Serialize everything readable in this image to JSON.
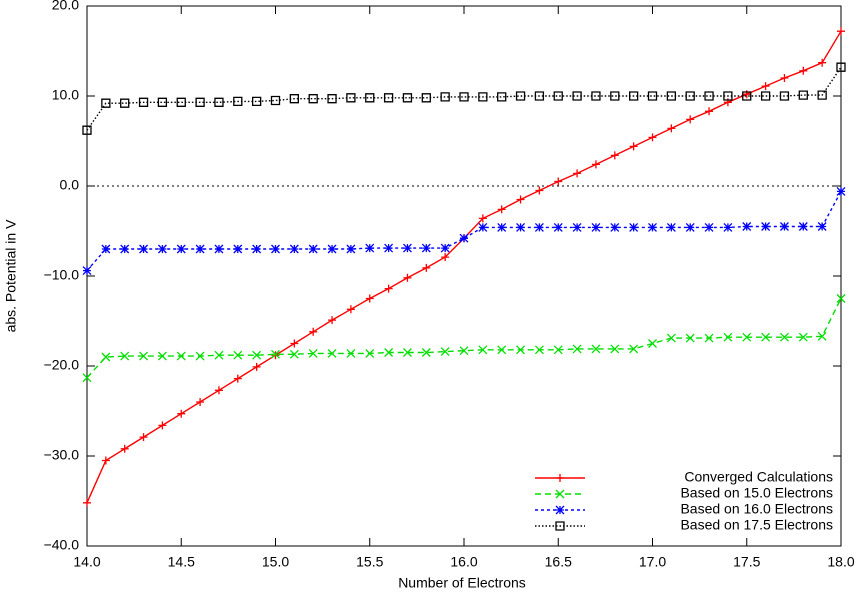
{
  "chart_data": {
    "type": "line",
    "xlabel": "Number of Electrons",
    "ylabel": "abs. Potential in V",
    "x": [
      14.0,
      14.1,
      14.2,
      14.3,
      14.4,
      14.5,
      14.6,
      14.7,
      14.8,
      14.9,
      15.0,
      15.1,
      15.2,
      15.3,
      15.4,
      15.5,
      15.6,
      15.7,
      15.8,
      15.9,
      16.0,
      16.1,
      16.2,
      16.3,
      16.4,
      16.5,
      16.6,
      16.7,
      16.8,
      16.9,
      17.0,
      17.1,
      17.2,
      17.3,
      17.4,
      17.5,
      17.6,
      17.7,
      17.8,
      17.9,
      18.0
    ],
    "series": [
      {
        "name": "Converged Calculations",
        "color": "#ff0000",
        "marker": "plus",
        "linestyle": "solid",
        "values": [
          -35.2,
          -30.5,
          -29.2,
          -27.9,
          -26.6,
          -25.3,
          -24.0,
          -22.7,
          -21.4,
          -20.1,
          -18.8,
          -17.5,
          -16.2,
          -14.9,
          -13.7,
          -12.5,
          -11.4,
          -10.2,
          -9.1,
          -7.9,
          -5.8,
          -3.6,
          -2.6,
          -1.5,
          -0.5,
          0.5,
          1.4,
          2.4,
          3.4,
          4.4,
          5.4,
          6.4,
          7.4,
          8.3,
          9.3,
          10.2,
          11.1,
          12.0,
          12.8,
          13.7,
          17.2
        ]
      },
      {
        "name": "Based on 15.0 Electrons",
        "color": "#00e000",
        "marker": "cross",
        "linestyle": "dashed",
        "values": [
          -21.3,
          -19.0,
          -18.9,
          -18.9,
          -18.9,
          -18.9,
          -18.9,
          -18.8,
          -18.8,
          -18.8,
          -18.7,
          -18.7,
          -18.6,
          -18.6,
          -18.6,
          -18.6,
          -18.5,
          -18.5,
          -18.5,
          -18.4,
          -18.3,
          -18.2,
          -18.2,
          -18.2,
          -18.2,
          -18.2,
          -18.1,
          -18.1,
          -18.1,
          -18.1,
          -17.5,
          -16.9,
          -16.9,
          -16.9,
          -16.8,
          -16.8,
          -16.8,
          -16.8,
          -16.8,
          -16.7,
          -12.5
        ]
      },
      {
        "name": "Based on 16.0 Electrons",
        "color": "#0000ff",
        "marker": "star",
        "linestyle": "dotted-dashed",
        "values": [
          -9.4,
          -7.0,
          -7.0,
          -7.0,
          -7.0,
          -7.0,
          -7.0,
          -7.0,
          -7.0,
          -7.0,
          -7.0,
          -7.0,
          -7.0,
          -7.0,
          -7.0,
          -6.9,
          -6.9,
          -6.9,
          -6.9,
          -6.9,
          -5.8,
          -4.6,
          -4.6,
          -4.6,
          -4.6,
          -4.6,
          -4.6,
          -4.6,
          -4.6,
          -4.6,
          -4.6,
          -4.6,
          -4.6,
          -4.6,
          -4.6,
          -4.5,
          -4.5,
          -4.5,
          -4.5,
          -4.5,
          -0.6
        ]
      },
      {
        "name": "Based on 17.5 Electrons",
        "color": "#000000",
        "marker": "square",
        "linestyle": "dotted",
        "values": [
          6.2,
          9.2,
          9.2,
          9.3,
          9.3,
          9.3,
          9.3,
          9.3,
          9.4,
          9.4,
          9.5,
          9.7,
          9.7,
          9.7,
          9.8,
          9.8,
          9.8,
          9.8,
          9.8,
          9.9,
          9.9,
          9.9,
          9.9,
          10.0,
          10.0,
          10.0,
          10.0,
          10.0,
          10.0,
          10.0,
          10.0,
          10.0,
          10.0,
          10.0,
          10.0,
          10.0,
          10.0,
          10.0,
          10.1,
          10.1,
          13.2
        ]
      }
    ],
    "xlim": [
      14,
      18
    ],
    "xticks": [
      {
        "value": 14,
        "label": "14.0"
      },
      14.5,
      {
        "value": 15,
        "label": "15.0"
      },
      15.5,
      {
        "value": 16,
        "label": "16.0"
      },
      16.5,
      {
        "value": 17,
        "label": "17.0"
      },
      17.5,
      {
        "value": 18,
        "label": "18.0"
      }
    ],
    "ylim": [
      -40,
      20
    ],
    "yticks": [
      {
        "value": -40,
        "label": "−40.0"
      },
      {
        "value": -30,
        "label": "−30.0"
      },
      {
        "value": -20,
        "label": "−20.0"
      },
      {
        "value": -10,
        "label": "−10.0"
      },
      {
        "value": 0,
        "label": "0.0"
      },
      {
        "value": 10,
        "label": "10.0"
      },
      {
        "value": 20,
        "label": "20.0"
      }
    ],
    "grid": false,
    "zero_line": true,
    "legend": "lower right"
  }
}
